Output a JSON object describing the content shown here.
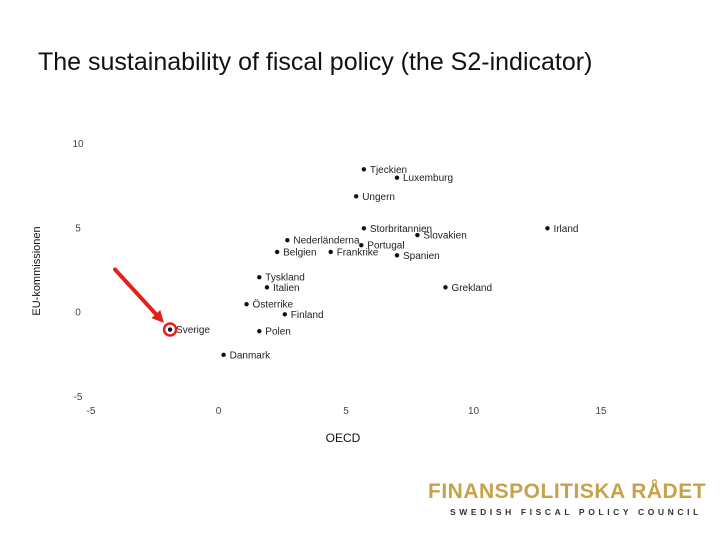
{
  "slide": {
    "title": "The sustainability of fiscal policy (the S2-indicator)"
  },
  "chart_data": {
    "type": "scatter",
    "title": "The sustainability of fiscal policy (the S2-indicator)",
    "xlabel": "OECD",
    "ylabel": "EU-kommissionen",
    "xlim": [
      -5,
      15
    ],
    "ylim": [
      -5,
      10
    ],
    "x_ticks": [
      "-5",
      "0",
      "5",
      "10",
      "15"
    ],
    "y_ticks": [
      "-5",
      "0",
      "5",
      "10"
    ],
    "grid": false,
    "legend": "none",
    "highlight": "Sverige",
    "highlight_color": "#e32119",
    "points": [
      {
        "name": "Tjeckien",
        "x": 5.7,
        "y": 8.5
      },
      {
        "name": "Luxemburg",
        "x": 7.0,
        "y": 8.0
      },
      {
        "name": "Ungern",
        "x": 5.4,
        "y": 6.9
      },
      {
        "name": "Storbritannien",
        "x": 5.7,
        "y": 5.0
      },
      {
        "name": "Irland",
        "x": 12.9,
        "y": 5.0
      },
      {
        "name": "Slovakien",
        "x": 7.8,
        "y": 4.6
      },
      {
        "name": "Nederländerna",
        "x": 2.7,
        "y": 4.3
      },
      {
        "name": "Portugal",
        "x": 5.6,
        "y": 4.0
      },
      {
        "name": "Belgien",
        "x": 2.3,
        "y": 3.6
      },
      {
        "name": "Frankrike",
        "x": 4.4,
        "y": 3.6
      },
      {
        "name": "Spanien",
        "x": 7.0,
        "y": 3.4
      },
      {
        "name": "Tyskland",
        "x": 1.6,
        "y": 2.1
      },
      {
        "name": "Grekland",
        "x": 8.9,
        "y": 1.5
      },
      {
        "name": "Italien",
        "x": 1.9,
        "y": 1.5
      },
      {
        "name": "Österrike",
        "x": 1.1,
        "y": 0.5
      },
      {
        "name": "Finland",
        "x": 2.6,
        "y": -0.1
      },
      {
        "name": "Sverige",
        "x": -1.9,
        "y": -1.0
      },
      {
        "name": "Polen",
        "x": 1.6,
        "y": -1.1
      },
      {
        "name": "Danmark",
        "x": 0.2,
        "y": -2.5
      }
    ]
  },
  "logo": {
    "main": "FINANSPOLITISKA RÅDET",
    "sub": "SWEDISH FISCAL POLICY COUNCIL",
    "color": "#c8a24a"
  }
}
